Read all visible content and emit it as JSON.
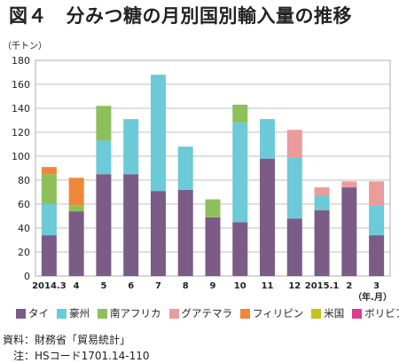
{
  "page": {
    "title": "図４　分みつ糖の月別国別輸入量の推移",
    "source_note": "資料：財務省「貿易統計」",
    "hs_note": "　注：HSコード1701.14-110"
  },
  "chart_data": {
    "type": "bar",
    "stacked": true,
    "title": "図４　分みつ糖の月別国別輸入量の推移",
    "ylabel": "（千トン）",
    "xlabel": "（年.月）",
    "ylim": [
      0,
      180
    ],
    "yticks": [
      0,
      20,
      40,
      60,
      80,
      100,
      120,
      140,
      160,
      180
    ],
    "grid": true,
    "legend_position": "bottom",
    "categories": [
      "2014.3",
      "4",
      "5",
      "6",
      "7",
      "8",
      "9",
      "10",
      "11",
      "12",
      "2015.1",
      "2",
      "3"
    ],
    "series": [
      {
        "name": "タイ",
        "color": "#7b5c86",
        "values": [
          34,
          54,
          85,
          85,
          71,
          72,
          49,
          45,
          98,
          48,
          55,
          74,
          34
        ]
      },
      {
        "name": "豪州",
        "color": "#6ccad9",
        "values": [
          26,
          0,
          28,
          46,
          97,
          36,
          0,
          83,
          33,
          51,
          12,
          0,
          25
        ]
      },
      {
        "name": "南アフリカ",
        "color": "#8dc05a",
        "values": [
          25,
          5,
          29,
          0,
          0,
          0,
          15,
          15,
          0,
          0,
          0,
          0,
          0
        ]
      },
      {
        "name": "グアテマラ",
        "color": "#eb9b9b",
        "values": [
          0,
          0,
          0,
          0,
          0,
          0,
          0,
          0,
          0,
          23,
          7,
          5,
          20
        ]
      },
      {
        "name": "フィリピン",
        "color": "#ef8638",
        "values": [
          6,
          23,
          0,
          0,
          0,
          0,
          0,
          0,
          0,
          0,
          0,
          0,
          0
        ]
      },
      {
        "name": "米国",
        "color": "#c3c31a",
        "values": [
          0,
          0,
          0,
          0,
          0,
          0,
          0,
          0,
          0,
          0,
          0,
          0,
          0
        ]
      },
      {
        "name": "ボリビア",
        "color": "#dd3d8a",
        "values": [
          0,
          0,
          0,
          0,
          0,
          0,
          0,
          0,
          0,
          0,
          0,
          0,
          0
        ]
      }
    ]
  }
}
